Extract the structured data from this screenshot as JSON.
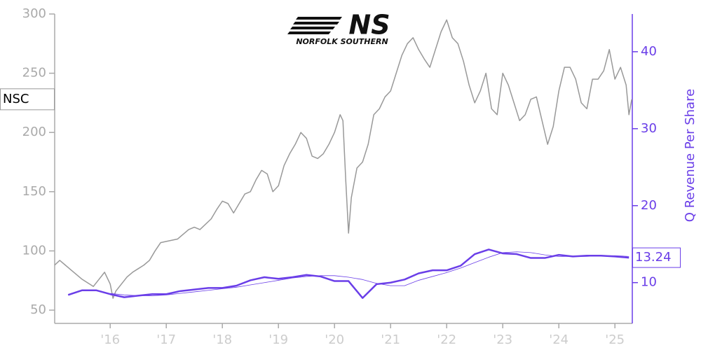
{
  "logo": {
    "mark": "NS",
    "name": "NORFOLK SOUTHERN"
  },
  "chart_data": {
    "type": "line",
    "y2label": "Q Revenue Per Share",
    "xlim": [
      2015.01,
      2025.31
    ],
    "xticks": [
      {
        "value": 2016,
        "label": "'16"
      },
      {
        "value": 2017,
        "label": "'17"
      },
      {
        "value": 2018,
        "label": "'18"
      },
      {
        "value": 2019,
        "label": "'19"
      },
      {
        "value": 2020,
        "label": "'20"
      },
      {
        "value": 2021,
        "label": "'21"
      },
      {
        "value": 2022,
        "label": "'22"
      },
      {
        "value": 2023,
        "label": "'23"
      },
      {
        "value": 2024,
        "label": "'24"
      },
      {
        "value": 2025,
        "label": "'25"
      }
    ],
    "ylim": [
      38.8,
      300
    ],
    "yticks": [
      50,
      100,
      150,
      200,
      250,
      300
    ],
    "y2lim": [
      4.7,
      44.9
    ],
    "y2ticks": [
      10,
      20,
      30,
      40
    ],
    "series": [
      {
        "name": "NSC",
        "color": "#999999",
        "axis": "y",
        "linewidth": 1.5,
        "x": [
          2015.01,
          2015.1,
          2015.2,
          2015.3,
          2015.4,
          2015.5,
          2015.6,
          2015.7,
          2015.8,
          2015.9,
          2016.0,
          2016.05,
          2016.1,
          2016.2,
          2016.3,
          2016.4,
          2016.5,
          2016.6,
          2016.7,
          2016.8,
          2016.9,
          2017.0,
          2017.2,
          2017.4,
          2017.5,
          2017.6,
          2017.8,
          2017.9,
          2018.0,
          2018.1,
          2018.2,
          2018.3,
          2018.4,
          2018.5,
          2018.6,
          2018.7,
          2018.8,
          2018.9,
          2019.0,
          2019.1,
          2019.2,
          2019.3,
          2019.4,
          2019.5,
          2019.6,
          2019.7,
          2019.8,
          2019.9,
          2020.0,
          2020.1,
          2020.15,
          2020.2,
          2020.25,
          2020.3,
          2020.4,
          2020.5,
          2020.6,
          2020.7,
          2020.8,
          2020.9,
          2021.0,
          2021.1,
          2021.2,
          2021.3,
          2021.4,
          2021.5,
          2021.6,
          2021.7,
          2021.8,
          2021.9,
          2022.0,
          2022.1,
          2022.2,
          2022.3,
          2022.4,
          2022.5,
          2022.6,
          2022.7,
          2022.8,
          2022.9,
          2023.0,
          2023.1,
          2023.2,
          2023.3,
          2023.4,
          2023.5,
          2023.6,
          2023.7,
          2023.8,
          2023.9,
          2024.0,
          2024.1,
          2024.2,
          2024.3,
          2024.4,
          2024.5,
          2024.6,
          2024.7,
          2024.8,
          2024.9,
          2025.0,
          2025.1,
          2025.2,
          2025.25,
          2025.3
        ],
        "values": [
          88,
          92,
          88,
          84,
          80,
          76,
          73,
          70,
          76,
          82,
          72,
          60,
          66,
          72,
          78,
          82,
          85,
          88,
          92,
          100,
          107,
          108,
          110,
          118,
          120,
          118,
          127,
          135,
          142,
          140,
          132,
          140,
          148,
          150,
          160,
          168,
          165,
          150,
          155,
          172,
          182,
          190,
          200,
          195,
          180,
          178,
          182,
          190,
          200,
          215,
          210,
          160,
          115,
          145,
          170,
          175,
          190,
          215,
          220,
          230,
          235,
          250,
          265,
          275,
          280,
          270,
          262,
          255,
          270,
          285,
          295,
          280,
          275,
          260,
          240,
          225,
          235,
          250,
          220,
          215,
          250,
          240,
          225,
          210,
          215,
          228,
          230,
          210,
          190,
          205,
          235,
          255,
          255,
          245,
          225,
          220,
          245,
          245,
          252,
          270,
          245,
          255,
          240,
          215,
          228
        ]
      },
      {
        "color": "#6a3ee8",
        "axis": "y2",
        "linewidth": 2.5,
        "x": [
          2015.25,
          2015.5,
          2015.75,
          2016.0,
          2016.25,
          2016.5,
          2016.75,
          2017.0,
          2017.25,
          2017.5,
          2017.75,
          2018.0,
          2018.25,
          2018.5,
          2018.75,
          2019.0,
          2019.25,
          2019.5,
          2019.75,
          2020.0,
          2020.25,
          2020.5,
          2020.75,
          2021.0,
          2021.25,
          2021.5,
          2021.75,
          2022.0,
          2022.25,
          2022.5,
          2022.75,
          2023.0,
          2023.25,
          2023.5,
          2023.75,
          2024.0,
          2024.25,
          2024.5,
          2024.75,
          2025.0,
          2025.25
        ],
        "values": [
          8.4,
          9.0,
          9.0,
          8.5,
          8.1,
          8.3,
          8.5,
          8.5,
          8.9,
          9.1,
          9.3,
          9.3,
          9.6,
          10.3,
          10.7,
          10.5,
          10.7,
          11.0,
          10.8,
          10.2,
          10.2,
          8.0,
          9.8,
          10.0,
          10.4,
          11.2,
          11.6,
          11.6,
          12.2,
          13.7,
          14.3,
          13.8,
          13.7,
          13.2,
          13.2,
          13.6,
          13.4,
          13.5,
          13.5,
          13.4,
          13.24
        ]
      },
      {
        "color": "#6a3ee8",
        "axis": "y2",
        "linewidth": 0.8,
        "x": [
          2016.0,
          2016.25,
          2016.5,
          2016.75,
          2017.0,
          2017.25,
          2017.5,
          2017.75,
          2018.0,
          2018.25,
          2018.5,
          2018.75,
          2019.0,
          2019.25,
          2019.5,
          2019.75,
          2020.0,
          2020.25,
          2020.5,
          2020.75,
          2021.0,
          2021.25,
          2021.5,
          2021.75,
          2022.0,
          2022.25,
          2022.5,
          2022.75,
          2023.0,
          2023.25,
          2023.5,
          2023.75,
          2024.0,
          2024.25,
          2024.5,
          2024.75,
          2025.0,
          2025.25
        ],
        "values": [
          8.6,
          8.4,
          8.3,
          8.3,
          8.4,
          8.6,
          8.8,
          9.0,
          9.2,
          9.4,
          9.7,
          10.0,
          10.3,
          10.6,
          10.8,
          10.9,
          10.9,
          10.7,
          10.4,
          9.9,
          9.6,
          9.6,
          10.3,
          10.8,
          11.3,
          11.9,
          12.6,
          13.3,
          13.9,
          14.0,
          13.9,
          13.6,
          13.4,
          13.4,
          13.4,
          13.5,
          13.5,
          13.4
        ]
      }
    ]
  }
}
